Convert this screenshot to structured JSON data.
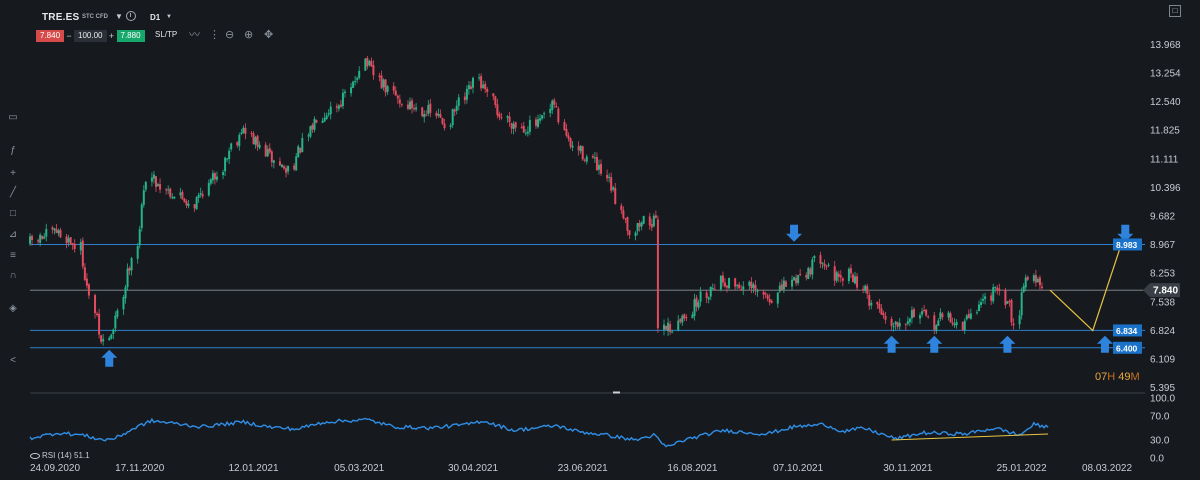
{
  "toolbar": {
    "symbol": "TRE.ES",
    "instrument_type": "STC CFD",
    "timeframe": "D1",
    "sell_price": "7.840",
    "minus": "−",
    "quantity": "100.00",
    "plus": "+",
    "buy_price": "7.880",
    "sltp_label": "SL/TP",
    "tools": [
      "line-style-icon",
      "wave-icon",
      "zoom-out-icon",
      "zoom-in-icon",
      "crosshair-icon"
    ],
    "maximize_icon": "maximize-icon"
  },
  "sidebar": {
    "icons": [
      "rectangle-icon",
      "fx-icon",
      "plus-icon",
      "pen-icon",
      "square-icon",
      "text-icon",
      "fib-icon",
      "magnet-icon",
      "layers-icon",
      "share-icon"
    ]
  },
  "countdown": {
    "hours": "07",
    "hours_unit": "H",
    "minutes": "49",
    "minutes_unit": "M"
  },
  "rsi": {
    "label": "RSI (14) 51.1"
  },
  "colors": {
    "background": "#161a1f",
    "bull": "#26b38a",
    "bear": "#e54b5f",
    "level_line": "#2f7fce",
    "current_line": "#8a8f96",
    "level_tag": "#1a73c9",
    "arrow": "#2e83dc",
    "projection": "#e9c440",
    "rsi_line": "#2f8ee6"
  },
  "chart_data": [
    {
      "type": "candlestick",
      "title": "TRE.ES",
      "timeframe": "D1",
      "x_tick_labels": [
        "24.09.2020",
        "17.11.2020",
        "12.01.2021",
        "05.03.2021",
        "30.04.2021",
        "23.06.2021",
        "16.08.2021",
        "07.10.2021",
        "30.11.2021",
        "25.01.2022",
        "08.03.2022"
      ],
      "y_tick_labels": [
        "13.968",
        "13.254",
        "12.540",
        "11.825",
        "11.111",
        "10.396",
        "9.682",
        "8.967",
        "8.253",
        "7.538",
        "6.824",
        "6.109",
        "5.395"
      ],
      "ylim": [
        5.395,
        14.2
      ],
      "close_path": [
        {
          "x": "2020-09-24",
          "y": 9.0
        },
        {
          "x": "2020-10-08",
          "y": 9.3
        },
        {
          "x": "2020-10-20",
          "y": 8.9
        },
        {
          "x": "2020-10-26",
          "y": 7.6
        },
        {
          "x": "2020-10-30",
          "y": 6.5
        },
        {
          "x": "2020-11-05",
          "y": 6.8
        },
        {
          "x": "2020-11-11",
          "y": 8.0
        },
        {
          "x": "2020-11-17",
          "y": 9.0
        },
        {
          "x": "2020-11-23",
          "y": 10.7
        },
        {
          "x": "2020-12-03",
          "y": 10.3
        },
        {
          "x": "2020-12-15",
          "y": 10.0
        },
        {
          "x": "2020-12-28",
          "y": 10.8
        },
        {
          "x": "2021-01-07",
          "y": 11.9
        },
        {
          "x": "2021-01-19",
          "y": 11.3
        },
        {
          "x": "2021-01-29",
          "y": 10.8
        },
        {
          "x": "2021-02-08",
          "y": 11.5
        },
        {
          "x": "2021-02-15",
          "y": 12.2
        },
        {
          "x": "2021-02-24",
          "y": 12.5
        },
        {
          "x": "2021-03-02",
          "y": 12.8
        },
        {
          "x": "2021-03-09",
          "y": 13.6
        },
        {
          "x": "2021-03-17",
          "y": 13.0
        },
        {
          "x": "2021-03-29",
          "y": 12.5
        },
        {
          "x": "2021-04-09",
          "y": 12.3
        },
        {
          "x": "2021-04-19",
          "y": 12.0
        },
        {
          "x": "2021-04-27",
          "y": 12.6
        },
        {
          "x": "2021-05-04",
          "y": 13.1
        },
        {
          "x": "2021-05-14",
          "y": 12.2
        },
        {
          "x": "2021-05-26",
          "y": 11.9
        },
        {
          "x": "2021-06-03",
          "y": 12.0
        },
        {
          "x": "2021-06-10",
          "y": 12.5
        },
        {
          "x": "2021-06-17",
          "y": 11.5
        },
        {
          "x": "2021-06-29",
          "y": 11.1
        },
        {
          "x": "2021-07-08",
          "y": 10.4
        },
        {
          "x": "2021-07-19",
          "y": 9.3
        },
        {
          "x": "2021-07-26",
          "y": 9.6
        },
        {
          "x": "2021-07-30",
          "y": 9.5
        },
        {
          "x": "2021-08-02",
          "y": 7.0
        },
        {
          "x": "2021-08-09",
          "y": 6.9
        },
        {
          "x": "2021-08-20",
          "y": 7.6
        },
        {
          "x": "2021-08-31",
          "y": 8.1
        },
        {
          "x": "2021-09-14",
          "y": 7.9
        },
        {
          "x": "2021-09-24",
          "y": 7.6
        },
        {
          "x": "2021-10-04",
          "y": 8.0
        },
        {
          "x": "2021-10-14",
          "y": 8.4
        },
        {
          "x": "2021-10-20",
          "y": 8.7
        },
        {
          "x": "2021-10-28",
          "y": 8.0
        },
        {
          "x": "2021-11-03",
          "y": 8.3
        },
        {
          "x": "2021-11-12",
          "y": 7.6
        },
        {
          "x": "2021-11-24",
          "y": 7.0
        },
        {
          "x": "2021-12-06",
          "y": 7.3
        },
        {
          "x": "2021-12-14",
          "y": 7.0
        },
        {
          "x": "2021-12-21",
          "y": 7.2
        },
        {
          "x": "2021-12-28",
          "y": 6.9
        },
        {
          "x": "2022-01-04",
          "y": 7.4
        },
        {
          "x": "2022-01-12",
          "y": 7.8
        },
        {
          "x": "2022-01-19",
          "y": 7.6
        },
        {
          "x": "2022-01-24",
          "y": 7.0
        },
        {
          "x": "2022-01-27",
          "y": 8.1
        },
        {
          "x": "2022-02-01",
          "y": 8.2
        },
        {
          "x": "2022-02-07",
          "y": 7.84
        }
      ],
      "current_price": 7.84,
      "price_tags": [
        {
          "value": "8.983",
          "y": 8.983
        },
        {
          "value": "7.840",
          "y": 7.84
        },
        {
          "value": "6.834",
          "y": 6.834
        },
        {
          "value": "6.400",
          "y": 6.4
        }
      ],
      "horizontal_levels": [
        8.983,
        6.834,
        6.4
      ],
      "annotations": {
        "up_arrows": [
          {
            "x": "2020-11-02",
            "y": 6.35
          },
          {
            "x": "2021-11-22",
            "y": 6.7
          },
          {
            "x": "2021-12-13",
            "y": 6.7
          },
          {
            "x": "2022-01-18",
            "y": 6.7
          },
          {
            "x": "2022-03-07",
            "y": 6.7
          }
        ],
        "down_arrows": [
          {
            "x": "2021-10-05",
            "y": 9.05
          },
          {
            "x": "2022-03-17",
            "y": 9.05
          }
        ],
        "projection": [
          {
            "x": "2022-02-08",
            "y": 7.84
          },
          {
            "x": "2022-03-01",
            "y": 6.83
          },
          {
            "x": "2022-03-15",
            "y": 8.983
          }
        ]
      }
    },
    {
      "type": "line",
      "title": "RSI (14) 51.1",
      "y_tick_labels": [
        "100.0",
        "70.0",
        "30.0",
        "0.0"
      ],
      "ylim": [
        0,
        100
      ],
      "values_path": [
        {
          "x": "2020-09-24",
          "y": 33
        },
        {
          "x": "2020-10-08",
          "y": 42
        },
        {
          "x": "2020-10-20",
          "y": 38
        },
        {
          "x": "2020-10-30",
          "y": 30
        },
        {
          "x": "2020-11-05",
          "y": 33
        },
        {
          "x": "2020-11-17",
          "y": 54
        },
        {
          "x": "2020-11-23",
          "y": 62
        },
        {
          "x": "2020-12-03",
          "y": 58
        },
        {
          "x": "2020-12-17",
          "y": 52
        },
        {
          "x": "2021-01-07",
          "y": 60
        },
        {
          "x": "2021-01-19",
          "y": 52
        },
        {
          "x": "2021-02-02",
          "y": 48
        },
        {
          "x": "2021-02-16",
          "y": 60
        },
        {
          "x": "2021-03-09",
          "y": 64
        },
        {
          "x": "2021-03-22",
          "y": 52
        },
        {
          "x": "2021-04-09",
          "y": 50
        },
        {
          "x": "2021-04-27",
          "y": 56
        },
        {
          "x": "2021-05-05",
          "y": 62
        },
        {
          "x": "2021-05-20",
          "y": 46
        },
        {
          "x": "2021-06-10",
          "y": 54
        },
        {
          "x": "2021-06-21",
          "y": 44
        },
        {
          "x": "2021-07-05",
          "y": 38
        },
        {
          "x": "2021-07-19",
          "y": 30
        },
        {
          "x": "2021-07-28",
          "y": 38
        },
        {
          "x": "2021-08-03",
          "y": 18
        },
        {
          "x": "2021-08-12",
          "y": 30
        },
        {
          "x": "2021-08-31",
          "y": 46
        },
        {
          "x": "2021-09-21",
          "y": 40
        },
        {
          "x": "2021-10-05",
          "y": 52
        },
        {
          "x": "2021-10-20",
          "y": 56
        },
        {
          "x": "2021-10-29",
          "y": 44
        },
        {
          "x": "2021-11-08",
          "y": 50
        },
        {
          "x": "2021-11-24",
          "y": 32
        },
        {
          "x": "2021-12-08",
          "y": 42
        },
        {
          "x": "2021-12-28",
          "y": 40
        },
        {
          "x": "2022-01-12",
          "y": 50
        },
        {
          "x": "2022-01-24",
          "y": 38
        },
        {
          "x": "2022-01-31",
          "y": 56
        },
        {
          "x": "2022-02-07",
          "y": 51.1
        }
      ],
      "trendline": [
        {
          "x": "2021-11-22",
          "y": 30
        },
        {
          "x": "2022-02-07",
          "y": 40
        }
      ]
    }
  ]
}
